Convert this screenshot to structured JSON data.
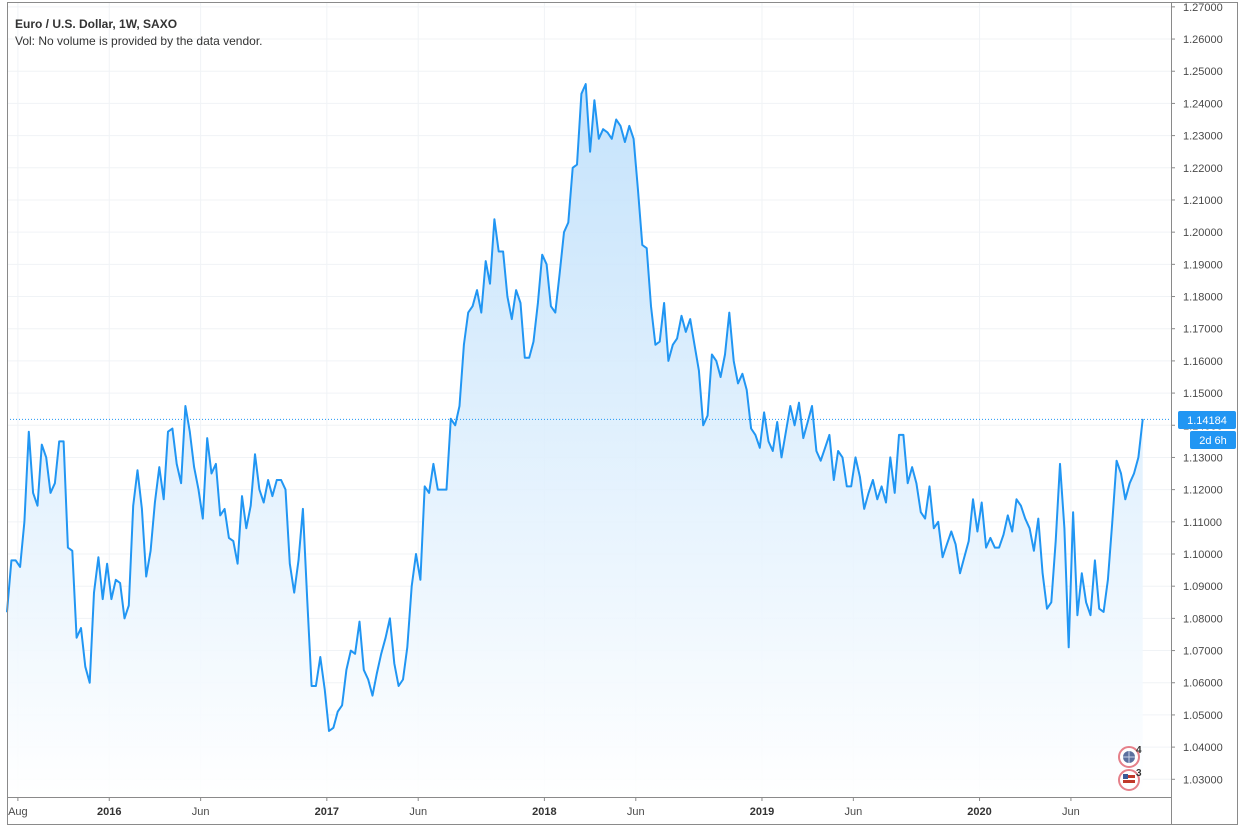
{
  "legend": {
    "title": "Euro / U.S. Dollar, 1W, SAXO",
    "volume_note": "Vol: No volume is provided by the data vendor."
  },
  "price_badge": {
    "price": "1.14184",
    "countdown": "2d 6h",
    "color": "#2196f3"
  },
  "event_markers": [
    {
      "icon": "globe-event-icon",
      "count": "4"
    },
    {
      "icon": "us-flag-event-icon",
      "count": "3"
    }
  ],
  "colors": {
    "line": "#2196f3",
    "fill_top": "#bbdefb",
    "fill_bottom": "#ffffff",
    "grid": "#f0f3f6",
    "axis": "#6b6b6b"
  },
  "chart_data": {
    "type": "area",
    "title": "Euro / U.S. Dollar, 1W, SAXO",
    "symbol": "EURUSD",
    "interval": "1W",
    "source": "SAXO",
    "x_tick_labels": [
      {
        "label": "Aug",
        "x": 2015.58,
        "bold": false
      },
      {
        "label": "2016",
        "x": 2016.0,
        "bold": true
      },
      {
        "label": "Jun",
        "x": 2016.42,
        "bold": false
      },
      {
        "label": "2017",
        "x": 2017.0,
        "bold": true
      },
      {
        "label": "Jun",
        "x": 2017.42,
        "bold": false
      },
      {
        "label": "2018",
        "x": 2018.0,
        "bold": true
      },
      {
        "label": "Jun",
        "x": 2018.42,
        "bold": false
      },
      {
        "label": "2019",
        "x": 2019.0,
        "bold": true
      },
      {
        "label": "Jun",
        "x": 2019.42,
        "bold": false
      },
      {
        "label": "2020",
        "x": 2020.0,
        "bold": true
      },
      {
        "label": "Jun",
        "x": 2020.42,
        "bold": false
      }
    ],
    "y_tick_labels": [
      "1.27000",
      "1.26000",
      "1.25000",
      "1.24000",
      "1.23000",
      "1.22000",
      "1.21000",
      "1.20000",
      "1.19000",
      "1.18000",
      "1.17000",
      "1.16000",
      "1.15000",
      "1.14000",
      "1.13000",
      "1.12000",
      "1.11000",
      "1.10000",
      "1.09000",
      "1.08000",
      "1.07000",
      "1.06000",
      "1.05000",
      "1.04000",
      "1.03000"
    ],
    "xlim": [
      2015.53,
      2020.88
    ],
    "ylim": [
      1.0245,
      1.2712
    ],
    "last_price": 1.14184,
    "grid": true,
    "series": [
      {
        "values": [
          [
            2015.53,
            1.082
          ],
          [
            2015.55,
            1.098
          ],
          [
            2015.57,
            1.098
          ],
          [
            2015.59,
            1.096
          ],
          [
            2015.61,
            1.11
          ],
          [
            2015.63,
            1.138
          ],
          [
            2015.65,
            1.119
          ],
          [
            2015.67,
            1.115
          ],
          [
            2015.69,
            1.134
          ],
          [
            2015.71,
            1.13
          ],
          [
            2015.73,
            1.119
          ],
          [
            2015.75,
            1.122
          ],
          [
            2015.77,
            1.135
          ],
          [
            2015.79,
            1.135
          ],
          [
            2015.81,
            1.102
          ],
          [
            2015.83,
            1.101
          ],
          [
            2015.85,
            1.074
          ],
          [
            2015.87,
            1.077
          ],
          [
            2015.89,
            1.065
          ],
          [
            2015.91,
            1.06
          ],
          [
            2015.93,
            1.088
          ],
          [
            2015.95,
            1.099
          ],
          [
            2015.97,
            1.086
          ],
          [
            2015.99,
            1.097
          ],
          [
            2016.01,
            1.086
          ],
          [
            2016.03,
            1.092
          ],
          [
            2016.05,
            1.091
          ],
          [
            2016.07,
            1.08
          ],
          [
            2016.09,
            1.084
          ],
          [
            2016.11,
            1.115
          ],
          [
            2016.13,
            1.126
          ],
          [
            2016.15,
            1.114
          ],
          [
            2016.17,
            1.093
          ],
          [
            2016.19,
            1.101
          ],
          [
            2016.21,
            1.116
          ],
          [
            2016.23,
            1.127
          ],
          [
            2016.25,
            1.117
          ],
          [
            2016.27,
            1.138
          ],
          [
            2016.29,
            1.139
          ],
          [
            2016.31,
            1.128
          ],
          [
            2016.33,
            1.122
          ],
          [
            2016.35,
            1.146
          ],
          [
            2016.37,
            1.138
          ],
          [
            2016.39,
            1.127
          ],
          [
            2016.41,
            1.12
          ],
          [
            2016.43,
            1.111
          ],
          [
            2016.45,
            1.136
          ],
          [
            2016.47,
            1.125
          ],
          [
            2016.49,
            1.128
          ],
          [
            2016.51,
            1.112
          ],
          [
            2016.53,
            1.114
          ],
          [
            2016.55,
            1.105
          ],
          [
            2016.57,
            1.104
          ],
          [
            2016.59,
            1.097
          ],
          [
            2016.61,
            1.118
          ],
          [
            2016.63,
            1.108
          ],
          [
            2016.65,
            1.115
          ],
          [
            2016.67,
            1.131
          ],
          [
            2016.69,
            1.12
          ],
          [
            2016.71,
            1.116
          ],
          [
            2016.73,
            1.123
          ],
          [
            2016.75,
            1.118
          ],
          [
            2016.77,
            1.123
          ],
          [
            2016.79,
            1.123
          ],
          [
            2016.81,
            1.12
          ],
          [
            2016.83,
            1.097
          ],
          [
            2016.85,
            1.088
          ],
          [
            2016.87,
            1.098
          ],
          [
            2016.89,
            1.114
          ],
          [
            2016.91,
            1.086
          ],
          [
            2016.93,
            1.059
          ],
          [
            2016.95,
            1.059
          ],
          [
            2016.97,
            1.068
          ],
          [
            2016.99,
            1.058
          ],
          [
            2017.01,
            1.045
          ],
          [
            2017.03,
            1.046
          ],
          [
            2017.05,
            1.051
          ],
          [
            2017.07,
            1.053
          ],
          [
            2017.09,
            1.064
          ],
          [
            2017.11,
            1.07
          ],
          [
            2017.13,
            1.069
          ],
          [
            2017.15,
            1.079
          ],
          [
            2017.17,
            1.064
          ],
          [
            2017.19,
            1.061
          ],
          [
            2017.21,
            1.056
          ],
          [
            2017.23,
            1.063
          ],
          [
            2017.25,
            1.069
          ],
          [
            2017.27,
            1.074
          ],
          [
            2017.29,
            1.08
          ],
          [
            2017.31,
            1.066
          ],
          [
            2017.33,
            1.059
          ],
          [
            2017.35,
            1.061
          ],
          [
            2017.37,
            1.071
          ],
          [
            2017.39,
            1.09
          ],
          [
            2017.41,
            1.1
          ],
          [
            2017.43,
            1.092
          ],
          [
            2017.45,
            1.121
          ],
          [
            2017.47,
            1.119
          ],
          [
            2017.49,
            1.128
          ],
          [
            2017.51,
            1.12
          ],
          [
            2017.53,
            1.12
          ],
          [
            2017.55,
            1.12
          ],
          [
            2017.57,
            1.142
          ],
          [
            2017.59,
            1.14
          ],
          [
            2017.61,
            1.146
          ],
          [
            2017.63,
            1.165
          ],
          [
            2017.65,
            1.175
          ],
          [
            2017.67,
            1.177
          ],
          [
            2017.69,
            1.182
          ],
          [
            2017.71,
            1.175
          ],
          [
            2017.73,
            1.191
          ],
          [
            2017.75,
            1.184
          ],
          [
            2017.77,
            1.204
          ],
          [
            2017.79,
            1.194
          ],
          [
            2017.81,
            1.194
          ],
          [
            2017.83,
            1.18
          ],
          [
            2017.85,
            1.173
          ],
          [
            2017.87,
            1.182
          ],
          [
            2017.89,
            1.178
          ],
          [
            2017.91,
            1.161
          ],
          [
            2017.93,
            1.161
          ],
          [
            2017.95,
            1.166
          ],
          [
            2017.97,
            1.178
          ],
          [
            2017.99,
            1.193
          ],
          [
            2018.01,
            1.19
          ],
          [
            2018.03,
            1.177
          ],
          [
            2018.05,
            1.175
          ],
          [
            2018.07,
            1.187
          ],
          [
            2018.09,
            1.2
          ],
          [
            2018.11,
            1.203
          ],
          [
            2018.13,
            1.22
          ],
          [
            2018.15,
            1.221
          ],
          [
            2018.17,
            1.243
          ],
          [
            2018.19,
            1.246
          ],
          [
            2018.21,
            1.225
          ],
          [
            2018.23,
            1.241
          ],
          [
            2018.25,
            1.229
          ],
          [
            2018.27,
            1.232
          ],
          [
            2018.29,
            1.231
          ],
          [
            2018.31,
            1.229
          ],
          [
            2018.33,
            1.235
          ],
          [
            2018.35,
            1.233
          ],
          [
            2018.37,
            1.228
          ],
          [
            2018.39,
            1.233
          ],
          [
            2018.41,
            1.229
          ],
          [
            2018.43,
            1.213
          ],
          [
            2018.45,
            1.196
          ],
          [
            2018.47,
            1.195
          ],
          [
            2018.49,
            1.177
          ],
          [
            2018.51,
            1.165
          ],
          [
            2018.53,
            1.166
          ],
          [
            2018.55,
            1.178
          ],
          [
            2018.57,
            1.16
          ],
          [
            2018.59,
            1.165
          ],
          [
            2018.61,
            1.167
          ],
          [
            2018.63,
            1.174
          ],
          [
            2018.65,
            1.169
          ],
          [
            2018.67,
            1.173
          ],
          [
            2018.69,
            1.165
          ],
          [
            2018.71,
            1.157
          ],
          [
            2018.73,
            1.14
          ],
          [
            2018.75,
            1.143
          ],
          [
            2018.77,
            1.162
          ],
          [
            2018.79,
            1.16
          ],
          [
            2018.81,
            1.155
          ],
          [
            2018.83,
            1.162
          ],
          [
            2018.85,
            1.175
          ],
          [
            2018.87,
            1.16
          ],
          [
            2018.89,
            1.153
          ],
          [
            2018.91,
            1.156
          ],
          [
            2018.93,
            1.151
          ],
          [
            2018.95,
            1.139
          ],
          [
            2018.97,
            1.137
          ],
          [
            2018.99,
            1.133
          ],
          [
            2019.01,
            1.144
          ],
          [
            2019.03,
            1.135
          ],
          [
            2019.05,
            1.132
          ],
          [
            2019.07,
            1.141
          ],
          [
            2019.09,
            1.13
          ],
          [
            2019.11,
            1.138
          ],
          [
            2019.13,
            1.146
          ],
          [
            2019.15,
            1.14
          ],
          [
            2019.17,
            1.147
          ],
          [
            2019.19,
            1.136
          ],
          [
            2019.21,
            1.141
          ],
          [
            2019.23,
            1.146
          ],
          [
            2019.25,
            1.132
          ],
          [
            2019.27,
            1.129
          ],
          [
            2019.29,
            1.133
          ],
          [
            2019.31,
            1.137
          ],
          [
            2019.33,
            1.123
          ],
          [
            2019.35,
            1.132
          ],
          [
            2019.37,
            1.13
          ],
          [
            2019.39,
            1.121
          ],
          [
            2019.41,
            1.121
          ],
          [
            2019.43,
            1.13
          ],
          [
            2019.45,
            1.124
          ],
          [
            2019.47,
            1.114
          ],
          [
            2019.49,
            1.119
          ],
          [
            2019.51,
            1.123
          ],
          [
            2019.53,
            1.117
          ],
          [
            2019.55,
            1.121
          ],
          [
            2019.57,
            1.116
          ],
          [
            2019.59,
            1.13
          ],
          [
            2019.61,
            1.119
          ],
          [
            2019.63,
            1.137
          ],
          [
            2019.65,
            1.137
          ],
          [
            2019.67,
            1.122
          ],
          [
            2019.69,
            1.127
          ],
          [
            2019.71,
            1.122
          ],
          [
            2019.73,
            1.113
          ],
          [
            2019.75,
            1.111
          ],
          [
            2019.77,
            1.121
          ],
          [
            2019.79,
            1.108
          ],
          [
            2019.81,
            1.11
          ],
          [
            2019.83,
            1.099
          ],
          [
            2019.85,
            1.103
          ],
          [
            2019.87,
            1.107
          ],
          [
            2019.89,
            1.103
          ],
          [
            2019.91,
            1.094
          ],
          [
            2019.93,
            1.099
          ],
          [
            2019.95,
            1.104
          ],
          [
            2019.97,
            1.117
          ],
          [
            2019.99,
            1.107
          ],
          [
            2020.01,
            1.116
          ],
          [
            2020.03,
            1.102
          ],
          [
            2020.05,
            1.105
          ],
          [
            2020.07,
            1.102
          ],
          [
            2020.09,
            1.102
          ],
          [
            2020.11,
            1.106
          ],
          [
            2020.13,
            1.112
          ],
          [
            2020.15,
            1.107
          ],
          [
            2020.17,
            1.117
          ],
          [
            2020.19,
            1.115
          ],
          [
            2020.21,
            1.111
          ],
          [
            2020.23,
            1.108
          ],
          [
            2020.25,
            1.101
          ],
          [
            2020.27,
            1.111
          ],
          [
            2020.29,
            1.094
          ],
          [
            2020.31,
            1.083
          ],
          [
            2020.33,
            1.085
          ],
          [
            2020.35,
            1.104
          ],
          [
            2020.37,
            1.128
          ],
          [
            2020.39,
            1.108
          ],
          [
            2020.41,
            1.071
          ],
          [
            2020.43,
            1.113
          ],
          [
            2020.45,
            1.081
          ],
          [
            2020.47,
            1.094
          ],
          [
            2020.49,
            1.085
          ],
          [
            2020.51,
            1.081
          ],
          [
            2020.53,
            1.098
          ],
          [
            2020.55,
            1.083
          ],
          [
            2020.57,
            1.082
          ],
          [
            2020.59,
            1.092
          ],
          [
            2020.61,
            1.11
          ],
          [
            2020.63,
            1.129
          ],
          [
            2020.65,
            1.125
          ],
          [
            2020.67,
            1.117
          ],
          [
            2020.69,
            1.122
          ],
          [
            2020.71,
            1.125
          ],
          [
            2020.73,
            1.13
          ],
          [
            2020.75,
            1.14184
          ]
        ]
      }
    ]
  }
}
